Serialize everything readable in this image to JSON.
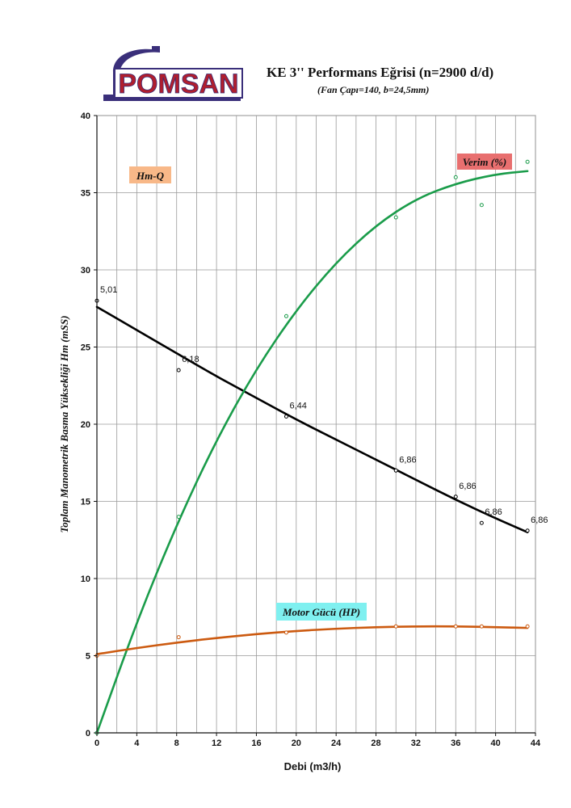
{
  "header": {
    "logo_text": "POMSAN",
    "title": "KE 3'' Performans Eğrisi  (n=2900 d/d)",
    "subtitle": "(Fan Çapı=140, b=24,5mm)"
  },
  "colors": {
    "hm_curve": "#000000",
    "verim_curve": "#1a9c4a",
    "motor_curve": "#cc5a10",
    "hm_label_bg": "#f8b888",
    "verim_label_bg": "#e86f6f",
    "motor_label_bg": "#7ff0f0",
    "logo": "#b01e2e",
    "logo_frame": "#3a2f7a"
  },
  "chart_data": {
    "type": "scatter",
    "xlabel": "Debi (m3/h)",
    "ylabel": "Toplam Manometrik Basma Yüksekliği Hm (mSS)",
    "xlim": [
      0,
      44
    ],
    "ylim": [
      0,
      40
    ],
    "x_ticks": [
      "0",
      "4",
      "8",
      "12",
      "16",
      "20",
      "24",
      "28",
      "32",
      "36",
      "40",
      "44"
    ],
    "y_ticks": [
      "0",
      "5",
      "10",
      "15",
      "20",
      "25",
      "30",
      "35",
      "40"
    ],
    "grid": true,
    "series": [
      {
        "name": "Hm-Q",
        "points": [
          [
            0,
            28.0
          ],
          [
            8.2,
            23.5
          ],
          [
            19,
            20.5
          ],
          [
            30,
            17.0
          ],
          [
            36,
            15.3
          ],
          [
            38.6,
            13.6
          ],
          [
            43.2,
            13.1
          ]
        ],
        "fit": [
          [
            0,
            27.6
          ],
          [
            4,
            26.1
          ],
          [
            8,
            24.6
          ],
          [
            12,
            23.1
          ],
          [
            16,
            21.7
          ],
          [
            20,
            20.3
          ],
          [
            24,
            19.0
          ],
          [
            28,
            17.7
          ],
          [
            32,
            16.4
          ],
          [
            36,
            15.1
          ],
          [
            40,
            13.9
          ],
          [
            43.2,
            13.0
          ]
        ],
        "point_labels": [
          "5,01",
          "6,18",
          "6,44",
          "6,86",
          "6,86",
          "6,86",
          "6,86"
        ]
      },
      {
        "name": "Verim (%)",
        "points": [
          [
            0,
            0
          ],
          [
            8.2,
            14.0
          ],
          [
            19,
            27.0
          ],
          [
            30,
            33.4
          ],
          [
            36,
            36.0
          ],
          [
            38.6,
            34.2
          ],
          [
            43.2,
            37.0
          ]
        ],
        "fit": [
          [
            0,
            0
          ],
          [
            4,
            7.2
          ],
          [
            8,
            13.5
          ],
          [
            12,
            19.0
          ],
          [
            16,
            23.6
          ],
          [
            20,
            27.4
          ],
          [
            24,
            30.5
          ],
          [
            28,
            32.9
          ],
          [
            32,
            34.6
          ],
          [
            36,
            35.6
          ],
          [
            40,
            36.2
          ],
          [
            43.2,
            36.4
          ]
        ]
      },
      {
        "name": "Motor Gücü (HP)",
        "points": [
          [
            0,
            5.0
          ],
          [
            8.2,
            6.2
          ],
          [
            19,
            6.5
          ],
          [
            30,
            6.9
          ],
          [
            36,
            6.9
          ],
          [
            38.6,
            6.9
          ],
          [
            43.2,
            6.9
          ]
        ],
        "fit": [
          [
            0,
            5.1
          ],
          [
            4,
            5.5
          ],
          [
            8,
            5.85
          ],
          [
            12,
            6.15
          ],
          [
            16,
            6.4
          ],
          [
            20,
            6.6
          ],
          [
            24,
            6.75
          ],
          [
            28,
            6.85
          ],
          [
            32,
            6.9
          ],
          [
            36,
            6.9
          ],
          [
            40,
            6.85
          ],
          [
            43.2,
            6.8
          ]
        ]
      }
    ]
  }
}
